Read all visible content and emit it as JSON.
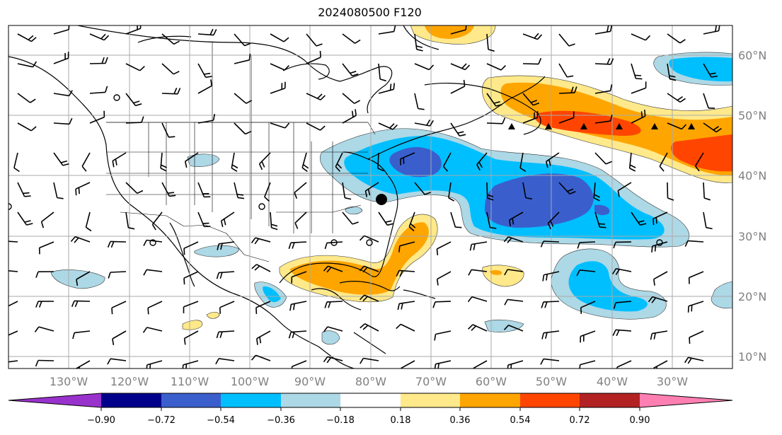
{
  "title": "2024080500 F120",
  "map": {
    "lon_labels": [
      "130°W",
      "120°W",
      "110°W",
      "100°W",
      "90°W",
      "80°W",
      "70°W",
      "60°W",
      "50°W",
      "40°W",
      "30°W"
    ],
    "lat_labels": [
      "60°N",
      "50°N",
      "40°N",
      "30°N",
      "20°N",
      "10°N"
    ],
    "lon_range": [
      -137,
      -17
    ],
    "lat_range": [
      8,
      65
    ],
    "grid": true,
    "marker_label": ""
  },
  "colorbar": {
    "levels": [
      "−0.90",
      "−0.72",
      "−0.54",
      "−0.36",
      "−0.18",
      "0.18",
      "0.36",
      "0.54",
      "0.72",
      "0.90"
    ],
    "colors": [
      "#9932cc",
      "#00008b",
      "#3a5fcd",
      "#00bfff",
      "#add8e6",
      "#ffffff",
      "#ffe98a",
      "#ffa500",
      "#ff4500",
      "#b22222",
      "#ff7fb2"
    ],
    "extend": "both"
  }
}
